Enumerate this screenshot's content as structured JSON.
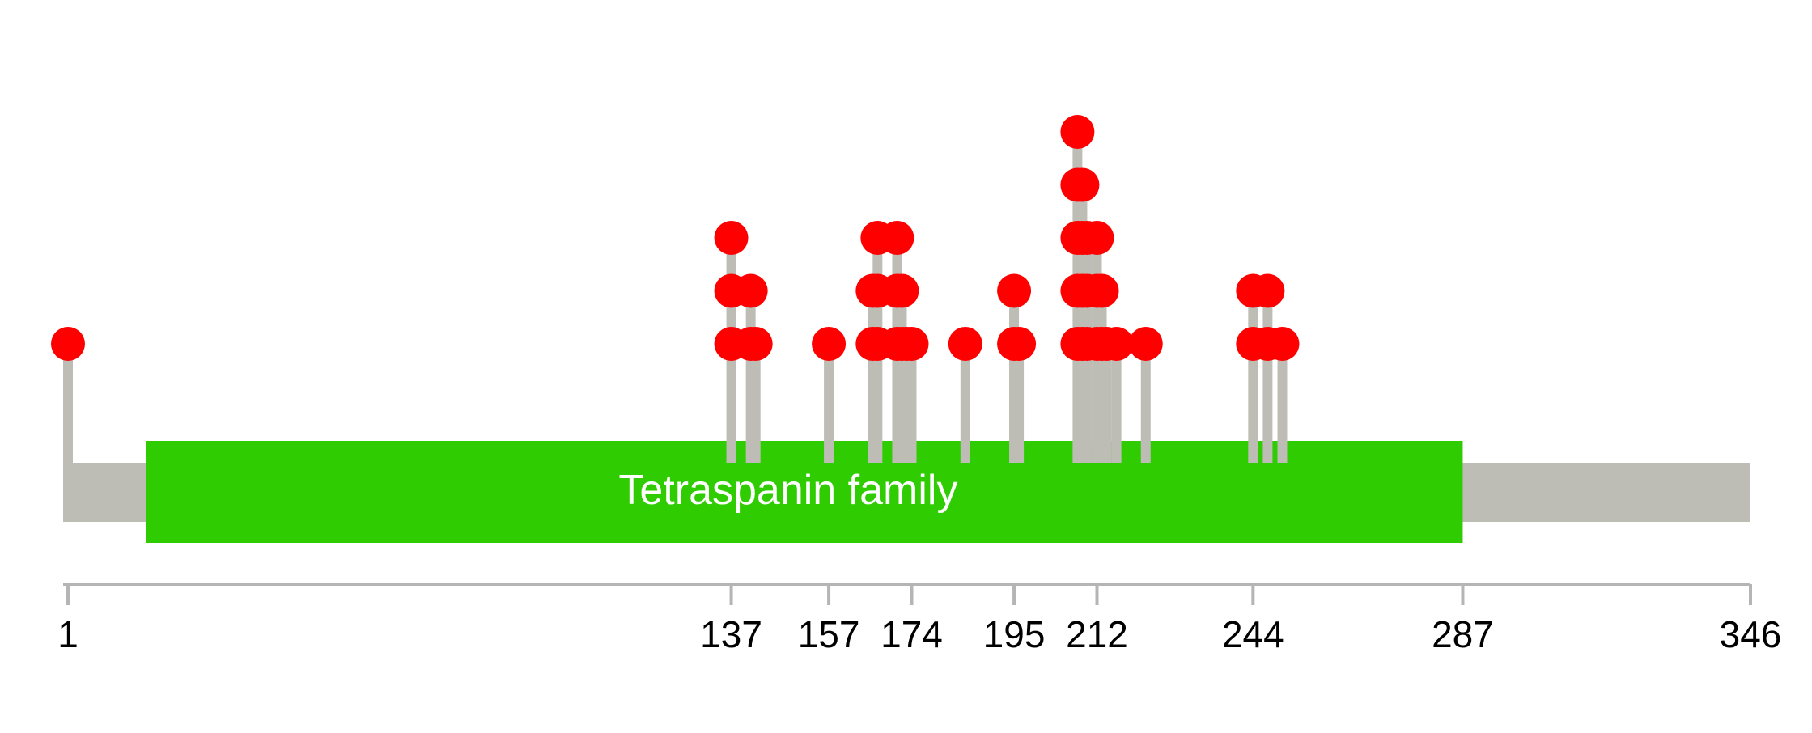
{
  "chart_data": {
    "type": "lollipop",
    "protein_length": 346,
    "domain": {
      "label": "Tetraspanin family",
      "start": 17,
      "end": 287,
      "color": "#2ecc00"
    },
    "axis_ticks": [
      1,
      137,
      157,
      174,
      195,
      212,
      244,
      287,
      346
    ],
    "mutations": [
      {
        "position": 1,
        "count": 1
      },
      {
        "position": 137,
        "count": 3
      },
      {
        "position": 141,
        "count": 2
      },
      {
        "position": 142,
        "count": 1
      },
      {
        "position": 157,
        "count": 1
      },
      {
        "position": 166,
        "count": 2
      },
      {
        "position": 167,
        "count": 3
      },
      {
        "position": 171,
        "count": 3
      },
      {
        "position": 172,
        "count": 2
      },
      {
        "position": 173,
        "count": 1
      },
      {
        "position": 174,
        "count": 1
      },
      {
        "position": 185,
        "count": 1
      },
      {
        "position": 195,
        "count": 2
      },
      {
        "position": 196,
        "count": 1
      },
      {
        "position": 208,
        "count": 5
      },
      {
        "position": 209,
        "count": 4
      },
      {
        "position": 210,
        "count": 3
      },
      {
        "position": 212,
        "count": 3
      },
      {
        "position": 213,
        "count": 2
      },
      {
        "position": 214,
        "count": 1
      },
      {
        "position": 216,
        "count": 1
      },
      {
        "position": 222,
        "count": 1
      },
      {
        "position": 244,
        "count": 2
      },
      {
        "position": 247,
        "count": 2
      },
      {
        "position": 250,
        "count": 1
      }
    ],
    "colors": {
      "backbone": "#bdbdb6",
      "stem": "#bdbdb6",
      "dot": "#ff0000",
      "axis": "#b5b5b5"
    }
  }
}
